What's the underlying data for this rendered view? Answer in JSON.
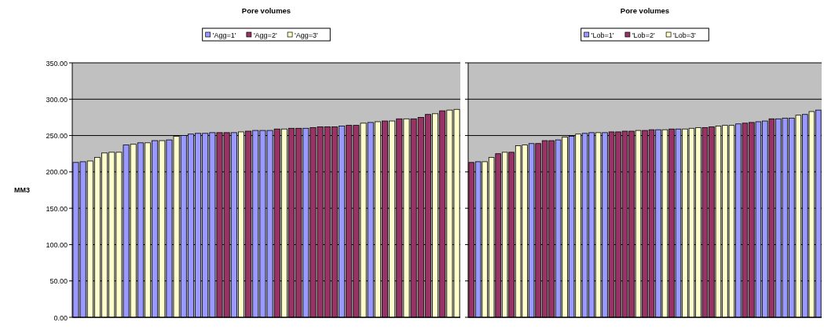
{
  "chart_data": [
    {
      "type": "bar",
      "title": "Pore volumes",
      "ylabel": "MM3",
      "stacked": true,
      "legend": "top",
      "grid": "y",
      "tick_labels": "y",
      "categories": [
        null,
        null,
        null,
        null,
        null,
        null,
        null,
        null,
        null,
        null,
        null,
        null,
        null,
        null,
        null,
        null,
        null,
        null,
        null,
        null,
        null,
        null,
        null,
        null,
        null,
        null,
        null,
        null,
        null,
        null,
        null,
        null,
        null,
        null,
        null,
        null,
        null,
        null,
        null,
        null,
        null,
        null,
        null,
        null,
        null,
        null,
        null,
        null,
        null,
        null,
        null,
        null,
        null,
        null
      ],
      "ylim": [
        0,
        350
      ],
      "yticks": [
        {
          "value": 0,
          "label": "0.00"
        },
        {
          "value": 50,
          "label": "50.00"
        },
        {
          "value": 100,
          "label": "100.00"
        },
        {
          "value": 150,
          "label": "150.00"
        },
        {
          "value": 200,
          "label": "200.00"
        },
        {
          "value": 250,
          "label": "250.00"
        },
        {
          "value": 300,
          "label": "300.00"
        },
        {
          "value": 350,
          "label": "350.00"
        }
      ],
      "series": [
        {
          "name": "'Agg=1'",
          "color": "#9999ff",
          "values": [
            213,
            214,
            null,
            null,
            null,
            null,
            null,
            237,
            null,
            240,
            null,
            243,
            null,
            244,
            null,
            250,
            252,
            253,
            253,
            254,
            null,
            null,
            254,
            null,
            null,
            257,
            257,
            257,
            null,
            null,
            null,
            null,
            260,
            null,
            null,
            null,
            null,
            263,
            null,
            null,
            null,
            268,
            null,
            null,
            null,
            null,
            null,
            null,
            null,
            null,
            null,
            null,
            null,
            null
          ]
        },
        {
          "name": "'Agg=2'",
          "color": "#993366",
          "values": [
            null,
            null,
            null,
            null,
            null,
            null,
            null,
            null,
            null,
            null,
            null,
            null,
            null,
            null,
            null,
            null,
            null,
            null,
            null,
            null,
            254,
            254,
            null,
            null,
            256,
            null,
            null,
            null,
            259,
            null,
            260,
            260,
            null,
            261,
            262,
            262,
            262,
            null,
            264,
            264,
            null,
            null,
            null,
            270,
            null,
            273,
            null,
            273,
            275,
            279,
            null,
            284,
            null,
            null
          ]
        },
        {
          "name": "'Agg=3'",
          "color": "#ffffcc",
          "values": [
            null,
            null,
            215,
            220,
            226,
            227,
            227,
            null,
            238,
            null,
            240,
            null,
            243,
            null,
            249,
            null,
            null,
            null,
            null,
            null,
            null,
            null,
            null,
            255,
            null,
            null,
            null,
            null,
            null,
            259,
            null,
            null,
            null,
            null,
            null,
            null,
            null,
            null,
            null,
            null,
            267,
            null,
            269,
            null,
            270,
            null,
            273,
            null,
            null,
            null,
            280,
            null,
            285,
            286
          ]
        }
      ]
    },
    {
      "type": "bar",
      "title": "Pore volumes",
      "stacked": true,
      "legend": "top",
      "grid": "y",
      "tick_labels": false,
      "categories": [
        null,
        null,
        null,
        null,
        null,
        null,
        null,
        null,
        null,
        null,
        null,
        null,
        null,
        null,
        null,
        null,
        null,
        null,
        null,
        null,
        null,
        null,
        null,
        null,
        null,
        null,
        null,
        null,
        null,
        null,
        null,
        null,
        null,
        null,
        null,
        null,
        null,
        null,
        null,
        null,
        null,
        null,
        null,
        null,
        null,
        null,
        null,
        null,
        null,
        null,
        null,
        null,
        null
      ],
      "ylim": [
        0,
        350
      ],
      "yticks": [
        {
          "value": 0,
          "label": null
        },
        {
          "value": 50,
          "label": null
        },
        {
          "value": 100,
          "label": null
        },
        {
          "value": 150,
          "label": null
        },
        {
          "value": 200,
          "label": null
        },
        {
          "value": 250,
          "label": null
        },
        {
          "value": 300,
          "label": null
        },
        {
          "value": 350,
          "label": null
        }
      ],
      "series": [
        {
          "name": "'Lob=1'",
          "color": "#9999ff",
          "values": [
            null,
            214,
            null,
            null,
            null,
            null,
            null,
            null,
            null,
            239,
            null,
            null,
            null,
            244,
            null,
            249,
            null,
            253,
            254,
            null,
            254,
            null,
            null,
            null,
            null,
            null,
            null,
            null,
            258,
            null,
            null,
            259,
            null,
            null,
            null,
            null,
            null,
            null,
            null,
            null,
            266,
            null,
            null,
            269,
            270,
            null,
            273,
            274,
            274,
            null,
            279,
            null,
            285
          ]
        },
        {
          "name": "'Lob=2'",
          "color": "#993366",
          "values": [
            213,
            null,
            null,
            null,
            225,
            null,
            227,
            null,
            null,
            null,
            239,
            243,
            243,
            null,
            null,
            null,
            null,
            null,
            null,
            null,
            null,
            255,
            255,
            256,
            256,
            null,
            257,
            258,
            null,
            null,
            259,
            null,
            null,
            null,
            null,
            261,
            262,
            null,
            null,
            null,
            null,
            267,
            268,
            null,
            null,
            273,
            null,
            null,
            null,
            null,
            null,
            null,
            null
          ]
        },
        {
          "name": "'Lob=3'",
          "color": "#ffffcc",
          "values": [
            null,
            null,
            214,
            220,
            null,
            227,
            null,
            236,
            237,
            null,
            null,
            null,
            null,
            null,
            248,
            null,
            252,
            null,
            null,
            254,
            null,
            null,
            null,
            null,
            null,
            257,
            null,
            null,
            null,
            258,
            null,
            null,
            259,
            260,
            261,
            null,
            null,
            263,
            264,
            264,
            null,
            null,
            null,
            null,
            null,
            null,
            null,
            null,
            null,
            278,
            null,
            283,
            null
          ]
        }
      ]
    }
  ]
}
